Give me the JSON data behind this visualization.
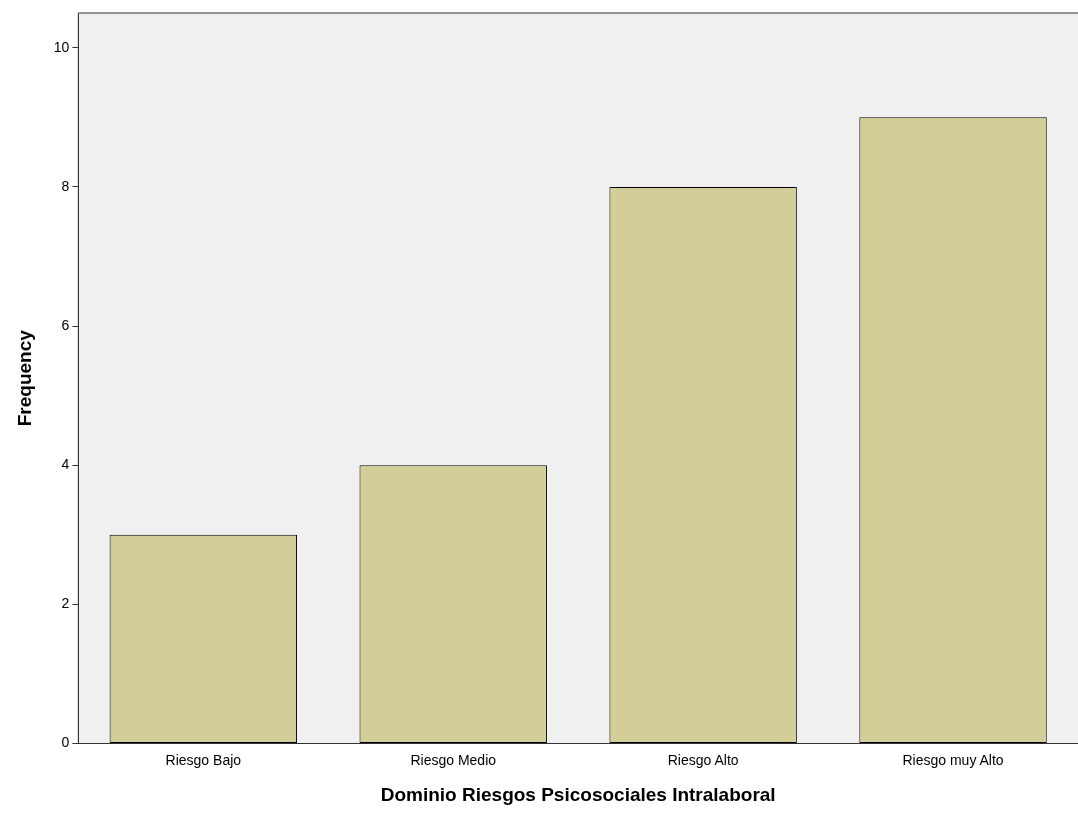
{
  "chart_data": {
    "type": "bar",
    "xlabel": "Dominio Riesgos Psicosociales Intralaboral",
    "ylabel": "Frequency",
    "categories": [
      "Riesgo Bajo",
      "Riesgo Medio",
      "Riesgo Alto",
      "Riesgo muy Alto"
    ],
    "values": [
      3,
      4,
      8,
      9
    ],
    "color": "#d3ce97",
    "ylim": [
      0,
      10.5
    ],
    "yticks": [
      0,
      2,
      4,
      6,
      8,
      10
    ],
    "grid": false,
    "legend": false
  }
}
